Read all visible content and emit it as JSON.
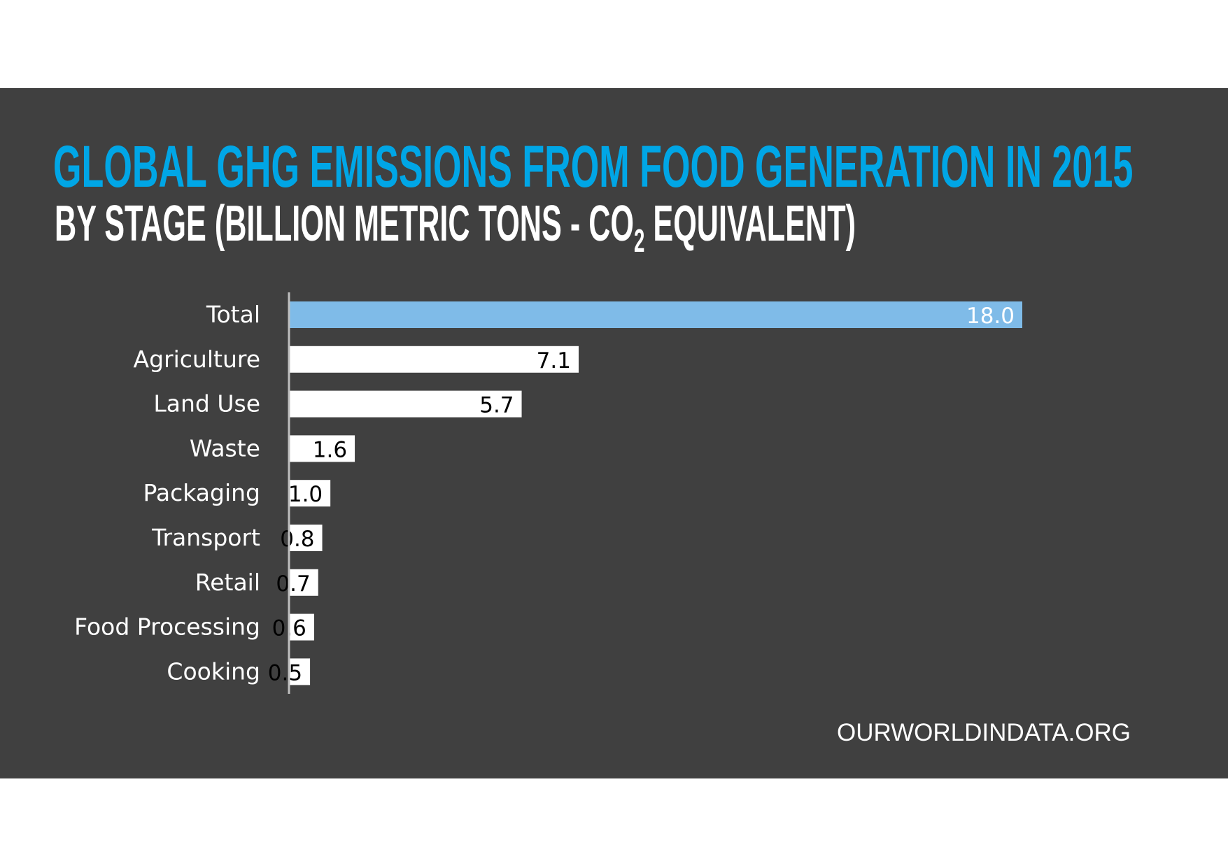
{
  "chart_data": {
    "type": "bar",
    "orientation": "horizontal",
    "title": "GLOBAL GHG EMISSIONS FROM FOOD GENERATION IN 2015",
    "subtitle_before": "BY STAGE (BILLION METRIC TONS - CO",
    "subtitle_sub": "2",
    "subtitle_after": " EQUIVALENT)",
    "categories": [
      "Total",
      "Agriculture",
      "Land Use",
      "Waste",
      "Packaging",
      "Transport",
      "Retail",
      "Food Processing",
      "Cooking"
    ],
    "values": [
      18.0,
      7.1,
      5.7,
      1.6,
      1.0,
      0.8,
      0.7,
      0.6,
      0.5
    ],
    "data_labels": [
      "18.0",
      "7.1",
      "5.7",
      "1.6",
      "1.0",
      "0.8",
      "0.7",
      "0.6",
      "0.5"
    ],
    "xlim": [
      0,
      18
    ],
    "grid": false,
    "colors": {
      "highlight": "#7fbbe8",
      "bar": "#ffffff",
      "background": "#404040",
      "title": "#00a6e6",
      "axis": "#bfbfbf"
    }
  },
  "source": "OURWORLDINDATA.ORG"
}
